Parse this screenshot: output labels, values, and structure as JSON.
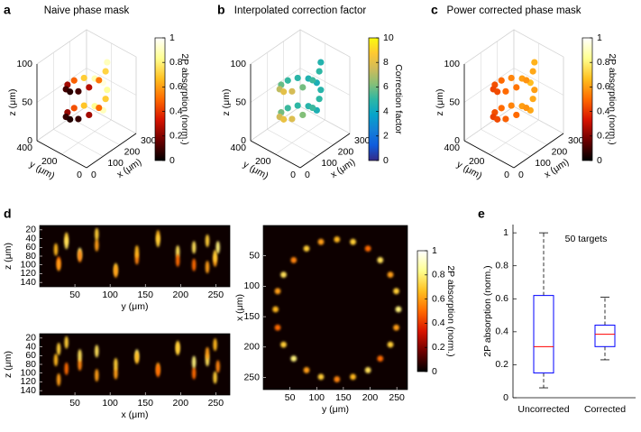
{
  "chart_data": [
    {
      "type": "scatter3d",
      "panel_label": "a",
      "title": "Naive phase mask",
      "xlabel": "x (μm)",
      "ylabel": "y (μm)",
      "zlabel": "z (μm)",
      "xlim": [
        0,
        300
      ],
      "ylim": [
        0,
        400
      ],
      "zlim": [
        0,
        100
      ],
      "xticks": [
        0,
        100,
        200,
        300
      ],
      "yticks": [
        0,
        200,
        400
      ],
      "zticks": [
        0,
        50,
        100
      ],
      "x": [
        250,
        237,
        200,
        150,
        100,
        63,
        50,
        63,
        100,
        150,
        200,
        237,
        250,
        237,
        200,
        150,
        100,
        63,
        50,
        63,
        100,
        150,
        200,
        237
      ],
      "y": [
        200,
        250,
        287,
        300,
        287,
        250,
        200,
        150,
        113,
        100,
        113,
        150,
        200,
        250,
        287,
        300,
        287,
        250,
        200,
        150,
        113,
        100,
        113,
        150
      ],
      "z": [
        20,
        23,
        26,
        29,
        32,
        35,
        38,
        41,
        44,
        47,
        50,
        53,
        56,
        59,
        62,
        65,
        68,
        71,
        74,
        77,
        80,
        83,
        86,
        89
      ],
      "values": [
        0.9,
        0.84,
        0.68,
        0.45,
        0.23,
        0.08,
        0.05,
        0.08,
        0.25,
        0.5,
        0.7,
        0.85,
        0.95,
        0.88,
        0.7,
        0.48,
        0.25,
        0.1,
        0.06,
        0.1,
        0.28,
        0.52,
        0.72,
        0.9
      ],
      "clim": [
        0,
        1
      ],
      "cticks": [
        0,
        0.2,
        0.4,
        0.6,
        0.8,
        1
      ],
      "clabel": "2P absorption (norm.)",
      "colormap": [
        "#000000",
        "#6e0000",
        "#d81400",
        "#ff6a00",
        "#ffc020",
        "#ffff90",
        "#ffffff"
      ],
      "grid": true
    },
    {
      "type": "scatter3d",
      "panel_label": "b",
      "title": "Interpolated correction factor",
      "xlabel": "x (μm)",
      "ylabel": "y (μm)",
      "zlabel": "z (μm)",
      "xlim": [
        0,
        300
      ],
      "ylim": [
        0,
        400
      ],
      "zlim": [
        0,
        100
      ],
      "xticks": [
        0,
        100,
        200,
        300
      ],
      "yticks": [
        0,
        200,
        400
      ],
      "zticks": [
        0,
        50,
        100
      ],
      "x": [
        250,
        237,
        200,
        150,
        100,
        63,
        50,
        63,
        100,
        150,
        200,
        237,
        250,
        237,
        200,
        150,
        100,
        63,
        50,
        63,
        100,
        150,
        200,
        237
      ],
      "y": [
        200,
        250,
        287,
        300,
        287,
        250,
        200,
        150,
        113,
        100,
        113,
        150,
        200,
        250,
        287,
        300,
        287,
        250,
        200,
        150,
        113,
        100,
        113,
        150
      ],
      "z": [
        20,
        23,
        26,
        29,
        32,
        35,
        38,
        41,
        44,
        47,
        50,
        53,
        56,
        59,
        62,
        65,
        68,
        71,
        74,
        77,
        80,
        83,
        86,
        89
      ],
      "values": [
        4.5,
        4.8,
        5,
        5.2,
        6,
        7.5,
        8.2,
        7.8,
        6.2,
        5.2,
        5,
        4.8,
        4.4,
        4.6,
        4.9,
        5.1,
        5.8,
        7.2,
        8,
        7.6,
        6,
        5.2,
        5,
        4.7
      ],
      "clim": [
        0,
        10
      ],
      "cticks": [
        0,
        2,
        4,
        6,
        8,
        10
      ],
      "clabel": "Correction factor",
      "colormap": [
        "#352a87",
        "#0f5cdd",
        "#1481d6",
        "#06a4ca",
        "#2eb7a4",
        "#87bf77",
        "#d1bb59",
        "#fec832",
        "#f9fb0e"
      ],
      "grid": true
    },
    {
      "type": "scatter3d",
      "panel_label": "c",
      "title": "Power corrected phase mask",
      "xlabel": "x (μm)",
      "ylabel": "y (μm)",
      "zlabel": "z (μm)",
      "xlim": [
        0,
        300
      ],
      "ylim": [
        0,
        400
      ],
      "zlim": [
        0,
        100
      ],
      "xticks": [
        0,
        100,
        200,
        300
      ],
      "yticks": [
        0,
        200,
        400
      ],
      "zticks": [
        0,
        50,
        100
      ],
      "x": [
        250,
        237,
        200,
        150,
        100,
        63,
        50,
        63,
        100,
        150,
        200,
        237,
        250,
        237,
        200,
        150,
        100,
        63,
        50,
        63,
        100,
        150,
        200,
        237
      ],
      "y": [
        200,
        250,
        287,
        300,
        287,
        250,
        200,
        150,
        113,
        100,
        113,
        150,
        200,
        250,
        287,
        300,
        287,
        250,
        200,
        150,
        113,
        100,
        113,
        150
      ],
      "z": [
        20,
        23,
        26,
        29,
        32,
        35,
        38,
        41,
        44,
        47,
        50,
        53,
        56,
        59,
        62,
        65,
        68,
        71,
        74,
        77,
        80,
        83,
        86,
        89
      ],
      "values": [
        0.62,
        0.6,
        0.55,
        0.5,
        0.45,
        0.42,
        0.44,
        0.48,
        0.5,
        0.58,
        0.62,
        0.6,
        0.66,
        0.6,
        0.55,
        0.5,
        0.45,
        0.43,
        0.44,
        0.5,
        0.52,
        0.58,
        0.62,
        0.64
      ],
      "clim": [
        0,
        1
      ],
      "cticks": [
        0,
        0.2,
        0.4,
        0.6,
        0.8,
        1
      ],
      "clabel": "2P absorption (norm.)",
      "colormap": [
        "#000000",
        "#6e0000",
        "#d81400",
        "#ff6a00",
        "#ffc020",
        "#ffff90",
        "#ffffff"
      ],
      "grid": true
    },
    {
      "type": "spots",
      "panel_label": "d",
      "xlabel": "y (μm)",
      "ylabel": "z (μm)",
      "xlim": [
        0,
        270
      ],
      "ylim": [
        10,
        150
      ],
      "y_reversed": true,
      "xticks": [
        50,
        100,
        150,
        200,
        250
      ],
      "yticks": [
        20,
        40,
        60,
        80,
        100,
        120,
        140
      ],
      "x": [
        253,
        249,
        238,
        219,
        196,
        168,
        138,
        108,
        81,
        57,
        38,
        27,
        23,
        27,
        38,
        57,
        81,
        108,
        138,
        168,
        196,
        219,
        238,
        249
      ],
      "y": [
        60,
        90,
        45,
        100,
        70,
        35,
        85,
        110,
        55,
        75,
        40,
        95,
        65,
        100,
        50,
        80,
        30,
        115,
        70,
        45,
        90,
        60,
        105,
        80
      ],
      "values": [
        0.8,
        0.6,
        0.7,
        0.5,
        0.75,
        0.65,
        0.55,
        0.7,
        0.6,
        0.8,
        0.7,
        0.5,
        0.65,
        0.6,
        0.75,
        0.55,
        0.7,
        0.6,
        0.65,
        0.7,
        0.5,
        0.75,
        0.6,
        0.7
      ],
      "clim": [
        0,
        1
      ],
      "colormap": [
        "#000000",
        "#6e0000",
        "#d81400",
        "#ff6a00",
        "#ffc020",
        "#ffff90",
        "#ffffff"
      ],
      "spot_shape": "elongated"
    },
    {
      "type": "spots",
      "xlabel": "x (μm)",
      "ylabel": "z (μm)",
      "xlim": [
        0,
        270
      ],
      "ylim": [
        10,
        150
      ],
      "y_reversed": true,
      "xticks": [
        50,
        100,
        150,
        200,
        250
      ],
      "yticks": [
        20,
        40,
        60,
        80,
        100,
        120,
        140
      ],
      "x": [
        138,
        168,
        196,
        219,
        238,
        249,
        253,
        249,
        238,
        219,
        196,
        168,
        138,
        108,
        81,
        57,
        38,
        27,
        23,
        27,
        38,
        57,
        81,
        108
      ],
      "y": [
        60,
        90,
        45,
        100,
        70,
        35,
        85,
        110,
        55,
        75,
        40,
        95,
        65,
        100,
        50,
        80,
        30,
        115,
        70,
        45,
        90,
        60,
        105,
        80
      ],
      "values": [
        0.8,
        0.6,
        0.7,
        0.5,
        0.75,
        0.65,
        0.55,
        0.7,
        0.6,
        0.8,
        0.7,
        0.5,
        0.65,
        0.6,
        0.75,
        0.55,
        0.7,
        0.6,
        0.65,
        0.7,
        0.5,
        0.75,
        0.6,
        0.7
      ],
      "clim": [
        0,
        1
      ],
      "colormap": [
        "#000000",
        "#6e0000",
        "#d81400",
        "#ff6a00",
        "#ffc020",
        "#ffff90",
        "#ffffff"
      ],
      "spot_shape": "elongated"
    },
    {
      "type": "spots",
      "xlabel": "y (μm)",
      "ylabel": "x (μm)",
      "xlim": [
        0,
        270
      ],
      "ylim": [
        0,
        270
      ],
      "y_reversed": true,
      "xticks": [
        50,
        100,
        150,
        200,
        250
      ],
      "yticks": [
        50,
        100,
        150,
        200,
        250
      ],
      "x": [
        253,
        249,
        238,
        219,
        196,
        168,
        138,
        108,
        81,
        57,
        38,
        27,
        23,
        27,
        38,
        57,
        81,
        108,
        138,
        168,
        196,
        219,
        238,
        249
      ],
      "y": [
        138,
        168,
        196,
        219,
        238,
        249,
        253,
        249,
        238,
        219,
        196,
        168,
        138,
        108,
        81,
        57,
        38,
        27,
        23,
        27,
        38,
        57,
        81,
        108
      ],
      "values": [
        0.8,
        0.6,
        0.7,
        0.5,
        0.75,
        0.65,
        0.55,
        0.7,
        0.6,
        0.8,
        0.7,
        0.5,
        0.65,
        0.6,
        0.75,
        0.55,
        0.7,
        0.6,
        0.65,
        0.7,
        0.5,
        0.75,
        0.6,
        0.7
      ],
      "clim": [
        0,
        1
      ],
      "cticks": [
        0,
        0.2,
        0.4,
        0.6,
        0.8,
        1
      ],
      "clabel": "2P absorption (norm.)",
      "colormap": [
        "#000000",
        "#6e0000",
        "#d81400",
        "#ff6a00",
        "#ffc020",
        "#ffff90",
        "#ffffff"
      ],
      "spot_shape": "round"
    },
    {
      "type": "box",
      "panel_label": "e",
      "annotation": "50 targets",
      "categories": [
        "Uncorrected",
        "Corrected"
      ],
      "boxes": [
        {
          "whislo": 0.06,
          "q1": 0.15,
          "med": 0.31,
          "q3": 0.62,
          "whishi": 1.0
        },
        {
          "whislo": 0.23,
          "q1": 0.31,
          "med": 0.385,
          "q3": 0.44,
          "whishi": 0.61
        }
      ],
      "ylabel": "2P absorption (norm.)",
      "ylim": [
        0,
        1.05
      ],
      "yticks": [
        0,
        0.2,
        0.4,
        0.6,
        0.8,
        1
      ],
      "color": "#0000ff",
      "median_color": "#ff0000"
    }
  ]
}
